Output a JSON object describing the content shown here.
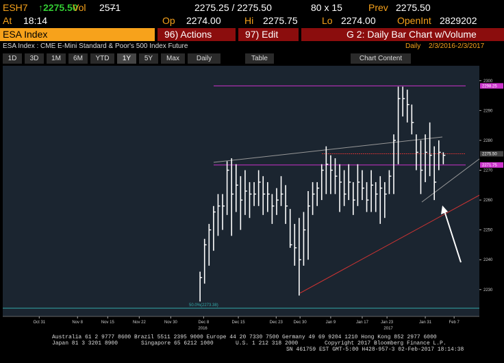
{
  "header": {
    "ticker": "ESH7",
    "last": "↑2275.50",
    "change": "--",
    "vol_label": "Vol",
    "vol": "2571",
    "quote": "2275.25 / 2275.50",
    "size": "80 x 15",
    "prev_label": "Prev",
    "prev": "2275.50",
    "at_label": "At",
    "time": "18:14",
    "op_label": "Op",
    "op": "2274.00",
    "hi_label": "Hi",
    "hi": "2275.75",
    "lo_label": "Lo",
    "lo": "2274.00",
    "oi_label": "OpenInt",
    "oi": "2829202"
  },
  "menu": {
    "security": "ESA Index",
    "actions": "96) Actions",
    "edit": "97) Edit",
    "page": "G 2: Daily Bar Chart w/Volume"
  },
  "info": {
    "description": "ESA Index : CME E-Mini Standard & Poor's 500 Index Future",
    "period": "Daily",
    "range": "2/3/2016-2/3/2017"
  },
  "toolbar": {
    "ranges": [
      "1D",
      "3D",
      "1M",
      "6M",
      "YTD",
      "1Y",
      "5Y",
      "Max"
    ],
    "selected": "1Y",
    "frequency": "Daily",
    "table": "Table",
    "content": "Chart Content"
  },
  "chart_data": {
    "type": "ohlc",
    "high": [
      2236,
      2247,
      2252,
      2258,
      2262,
      2262,
      2273,
      2274,
      2272,
      2268,
      2270,
      2266,
      2266,
      2270,
      2268,
      2266,
      2262,
      2264,
      2268,
      2265,
      2257,
      2252,
      2254,
      2256,
      2263,
      2266,
      2266,
      2272,
      2278,
      2275,
      2274,
      2272,
      2270,
      2272,
      2266,
      2272,
      2270,
      2266,
      2270,
      2266,
      2268,
      2266,
      2270,
      2282,
      2298,
      2298,
      2297,
      2292,
      2282,
      2280,
      2282,
      2286,
      2278,
      2280,
      2276
    ],
    "low": [
      2226,
      2232,
      2238,
      2243,
      2248,
      2250,
      2255,
      2248,
      2256,
      2250,
      2255,
      2254,
      2258,
      2258,
      2255,
      2256,
      2252,
      2255,
      2258,
      2252,
      2244,
      2238,
      2228,
      2238,
      2240,
      2255,
      2258,
      2260,
      2262,
      2262,
      2262,
      2256,
      2258,
      2260,
      2255,
      2258,
      2260,
      2256,
      2256,
      2256,
      2252,
      2254,
      2262,
      2262,
      2272,
      2288,
      2286,
      2282,
      2270,
      2262,
      2266,
      2268,
      2260,
      2270,
      2272
    ],
    "close": [
      2234,
      2245,
      2250,
      2256,
      2258,
      2258,
      2270,
      2262,
      2265,
      2260,
      2263,
      2262,
      2262,
      2266,
      2262,
      2262,
      2258,
      2260,
      2262,
      2258,
      2245,
      2244,
      2240,
      2250,
      2258,
      2262,
      2264,
      2270,
      2272,
      2270,
      2268,
      2266,
      2262,
      2266,
      2260,
      2266,
      2264,
      2260,
      2265,
      2262,
      2264,
      2262,
      2268,
      2280,
      2294,
      2294,
      2292,
      2286,
      2276,
      2270,
      2276,
      2275,
      2266,
      2276,
      2275
    ],
    "color": "#ffffff",
    "xlim": [
      -43.8,
      62
    ],
    "xticks": [
      {
        "value": -35.7,
        "label": "Oct 31"
      },
      {
        "value": -27.2,
        "label": "Nov 8"
      },
      {
        "value": -20.5,
        "label": "Nov 15"
      },
      {
        "value": -13.5,
        "label": "Nov 22"
      },
      {
        "value": -6.5,
        "label": "Nov 30"
      },
      {
        "value": 0.8,
        "label": "Dec 8"
      },
      {
        "value": 8.5,
        "label": "Dec 15"
      },
      {
        "value": 16.9,
        "label": "Dec 23"
      },
      {
        "value": 22.2,
        "label": "Dec 30"
      },
      {
        "value": 29,
        "label": "Jan 9"
      },
      {
        "value": 36,
        "label": "Jan 17"
      },
      {
        "value": 41.5,
        "label": "Jan 23"
      },
      {
        "value": 50,
        "label": "Jan 31"
      },
      {
        "value": 56.4,
        "label": "Feb 7"
      }
    ],
    "years": [
      {
        "value": 0.6,
        "label": "2016"
      },
      {
        "value": 41.8,
        "label": "2017"
      }
    ],
    "ylim": [
      2221,
      2305
    ],
    "yticks": [
      2230,
      2240,
      2250,
      2260,
      2270,
      2280,
      2290,
      2300
    ],
    "levels": [
      {
        "value": 2298.25,
        "label": "2298.25",
        "color": "#cc33cc"
      },
      {
        "value": 2275.5,
        "label": "2275.50",
        "color": "#444444"
      },
      {
        "value": 2271.75,
        "label": "2271.75",
        "color": "#cc33cc"
      }
    ],
    "annotation": "50.0%(2273.38)"
  },
  "footer": {
    "line1": "Australia 61 2 9777 8600 Brazil 5511 2395 9000 Europe 44 20 7330 7500 Germany 49 69 9204 1210 Hong Kong 852 2977 6000",
    "line2a": "Japan 81 3 3201 8900",
    "line2b": "Singapore 65 6212 1000",
    "line2c": "U.S. 1 212 318 2000",
    "line2d": "Copyright 2017 Bloomberg Finance L.P.",
    "line3": "SN 461759 EST  GMT-5:00 H428-957-3 02-Feb-2017 18:14:38"
  }
}
